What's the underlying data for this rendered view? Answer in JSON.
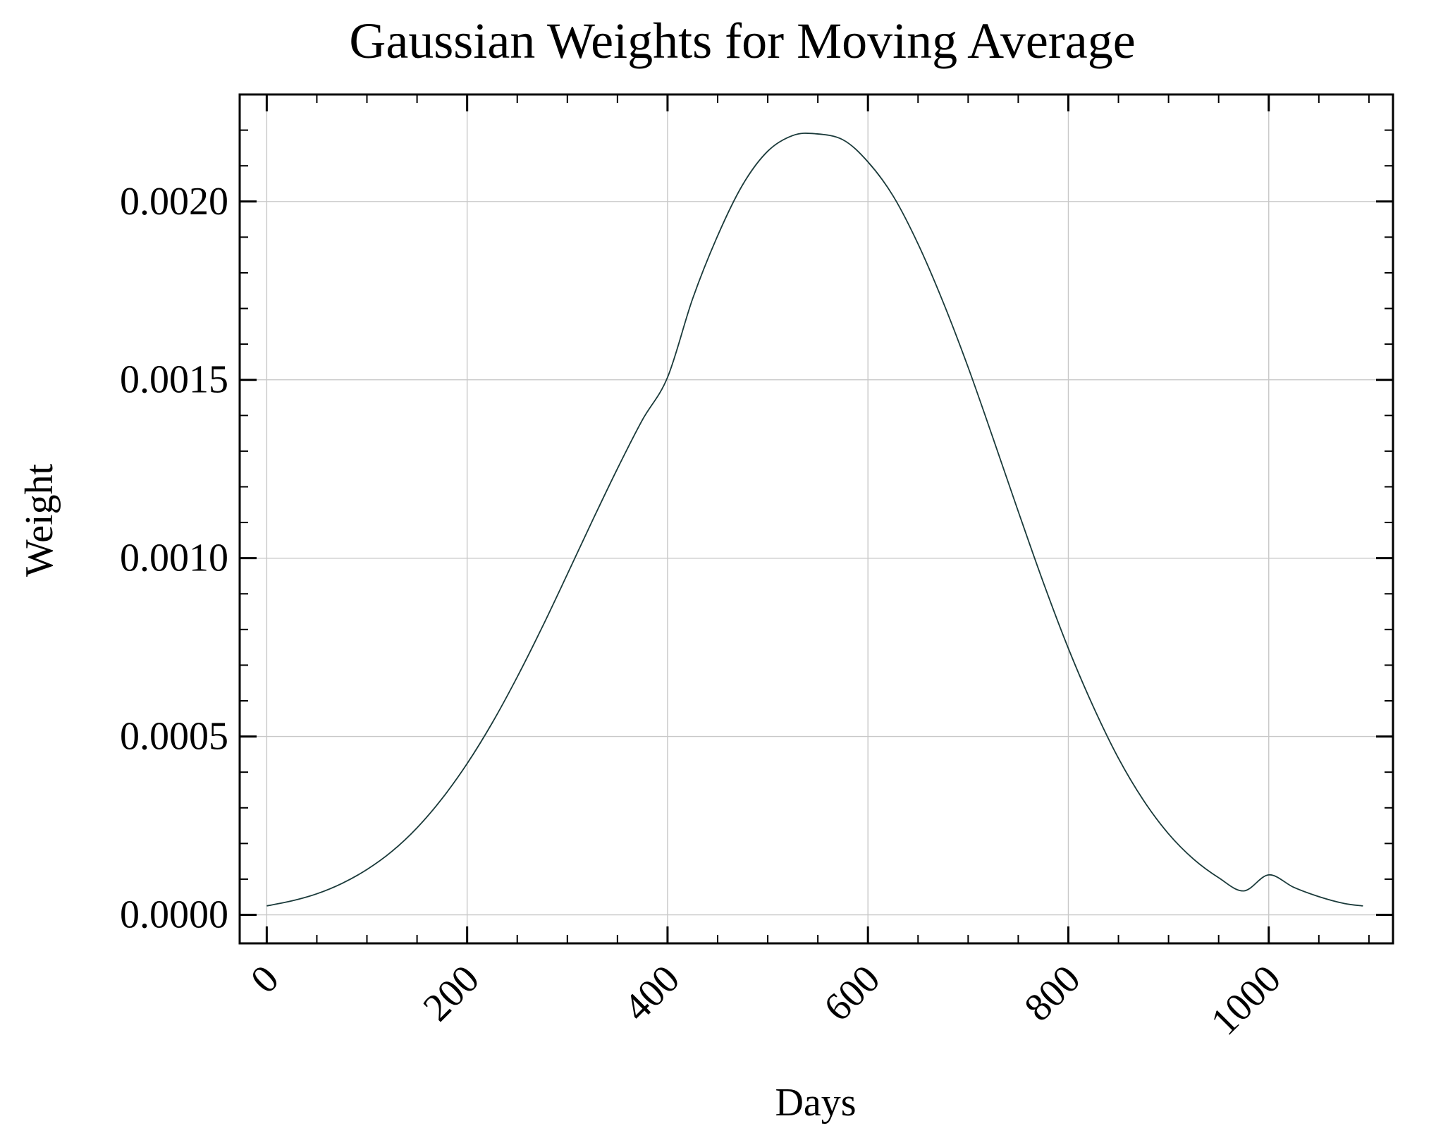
{
  "chart_data": {
    "type": "line",
    "title": "Gaussian Weights for Moving Average",
    "xlabel": "Days",
    "ylabel": "Weight",
    "xlim": [
      -27,
      1124
    ],
    "ylim": [
      -8e-05,
      0.0023
    ],
    "x_ticks": [
      0,
      200,
      400,
      600,
      800,
      1000
    ],
    "x_tick_labels": [
      "0",
      "200",
      "400",
      "600",
      "800",
      "1000"
    ],
    "x_minor_step": 50,
    "y_ticks": [
      0.0,
      0.0005,
      0.001,
      0.0015,
      0.002
    ],
    "y_tick_labels": [
      "0.0000",
      "0.0005",
      "0.0010",
      "0.0015",
      "0.0020"
    ],
    "y_minor_step": 0.0001,
    "grid": true,
    "x_tick_rotation_deg": -45,
    "series": [
      {
        "color": "#1a3a3a",
        "x": [
          0,
          25,
          50,
          75,
          100,
          125,
          150,
          175,
          200,
          225,
          250,
          275,
          300,
          325,
          350,
          375,
          400,
          425,
          450,
          475,
          500,
          525,
          547,
          575,
          600,
          625,
          650,
          675,
          700,
          725,
          750,
          775,
          800,
          825,
          850,
          875,
          900,
          925,
          950,
          975,
          1000,
          1025,
          1050,
          1075,
          1094
        ],
        "y": [
          2.5e-05,
          3.9e-05,
          5.9e-05,
          8.8e-05,
          0.000127,
          0.000178,
          0.000244,
          0.000326,
          0.000424,
          0.000538,
          0.000667,
          0.000807,
          0.000955,
          0.001105,
          0.001251,
          0.001388,
          0.001507,
          0.001727,
          0.001904,
          0.002047,
          0.002141,
          0.002185,
          0.00219,
          0.002173,
          0.002111,
          0.002016,
          0.001881,
          0.001718,
          0.001535,
          0.001335,
          0.001131,
          0.000932,
          0.000747,
          0.000583,
          0.000439,
          0.000321,
          0.000227,
          0.000156,
          0.000104,
          6.7e-05,
          0.000112,
          7.7e-05,
          5.1e-05,
          3.2e-05,
          2.5e-05
        ]
      }
    ]
  }
}
